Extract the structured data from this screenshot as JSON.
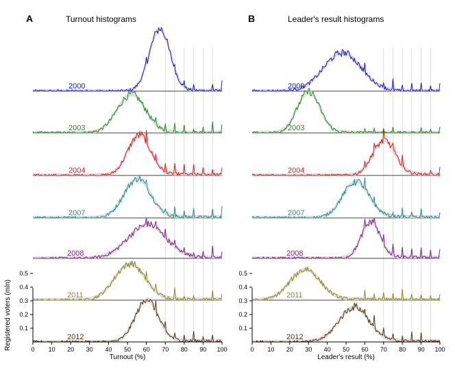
{
  "figure": {
    "shared_ylabel": "Registered voters (mln)"
  },
  "chart_data": [
    {
      "type": "line",
      "panel_letter": "A",
      "title": "Turnout histograms",
      "xlabel": "Turnout (%)",
      "ylabel": "Registered voters (mln)",
      "xlim": [
        0,
        100
      ],
      "xticks": [
        0,
        10,
        20,
        30,
        40,
        50,
        60,
        70,
        80,
        90,
        100
      ],
      "yticks": [
        0.1,
        0.2,
        0.3,
        0.4,
        0.5
      ],
      "ylim": [
        0,
        0.55
      ],
      "reference_lines_x": [
        70,
        75,
        80,
        85,
        90,
        95
      ],
      "series": [
        {
          "name": "2000",
          "color": "#1515e0",
          "peak_x": 67,
          "peak_height": 0.45,
          "width": 5.5,
          "values_note": "sharp peak near 67%"
        },
        {
          "name": "2003",
          "color": "#1a8c1a",
          "peak_x": 52,
          "peak_height": 0.28,
          "width": 7.5
        },
        {
          "name": "2004",
          "color": "#ee1515",
          "peak_x": 56,
          "peak_height": 0.29,
          "width": 6
        },
        {
          "name": "2007",
          "color": "#18908f",
          "peak_x": 55,
          "peak_height": 0.28,
          "width": 7
        },
        {
          "name": "2008",
          "color": "#8a158a",
          "peak_x": 60,
          "peak_height": 0.24,
          "width": 10
        },
        {
          "name": "2011",
          "color": "#8c8c15",
          "peak_x": 51,
          "peak_height": 0.26,
          "width": 8
        },
        {
          "name": "2012",
          "color": "#5a3212",
          "peak_x": 60,
          "peak_height": 0.3,
          "width": 6
        }
      ]
    },
    {
      "type": "line",
      "panel_letter": "B",
      "title": "Leader's result histograms",
      "xlabel": "Leader's result (%)",
      "ylabel": "Registered voters (mln)",
      "xlim": [
        0,
        100
      ],
      "xticks": [
        0,
        10,
        20,
        30,
        40,
        50,
        60,
        70,
        80,
        90,
        100
      ],
      "yticks": [
        0.1,
        0.2,
        0.3,
        0.4,
        0.5
      ],
      "ylim": [
        0,
        0.55
      ],
      "reference_lines_x": [
        70,
        75,
        80,
        85,
        90,
        95
      ],
      "series": [
        {
          "name": "2000",
          "color": "#1515e0",
          "peak_x": 48,
          "peak_height": 0.28,
          "width": 10
        },
        {
          "name": "2003",
          "color": "#1a8c1a",
          "peak_x": 30,
          "peak_height": 0.3,
          "width": 6
        },
        {
          "name": "2004",
          "color": "#ee1515",
          "peak_x": 70,
          "peak_height": 0.25,
          "width": 6
        },
        {
          "name": "2007",
          "color": "#18908f",
          "peak_x": 55,
          "peak_height": 0.26,
          "width": 7
        },
        {
          "name": "2008",
          "color": "#8a158a",
          "peak_x": 63,
          "peak_height": 0.26,
          "width": 5
        },
        {
          "name": "2011",
          "color": "#8c8c15",
          "peak_x": 28,
          "peak_height": 0.22,
          "width": 8
        },
        {
          "name": "2012",
          "color": "#5a3212",
          "peak_x": 54,
          "peak_height": 0.25,
          "width": 8
        }
      ]
    }
  ]
}
